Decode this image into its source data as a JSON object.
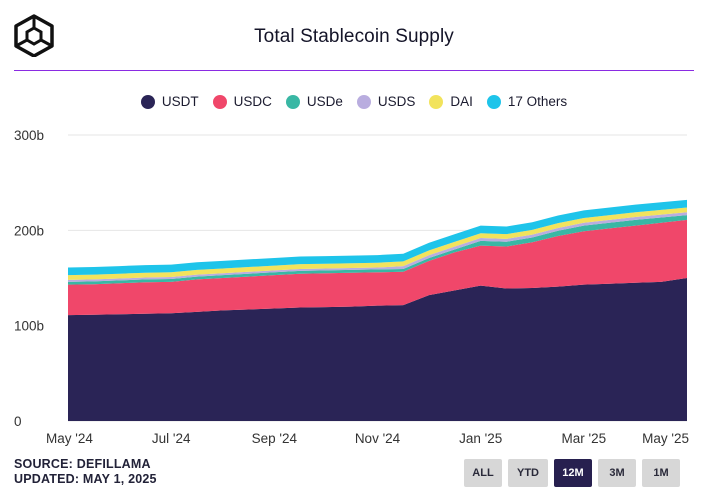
{
  "header": {
    "title": "Total Stablecoin Supply"
  },
  "footer": {
    "source": "SOURCE: DEFILLAMA",
    "updated": "UPDATED: MAY 1, 2025"
  },
  "range_buttons": [
    {
      "label": "ALL",
      "active": false
    },
    {
      "label": "YTD",
      "active": false
    },
    {
      "label": "12M",
      "active": true
    },
    {
      "label": "3M",
      "active": false
    },
    {
      "label": "1M",
      "active": false
    }
  ],
  "colors": {
    "USDT": "#2a2456",
    "USDC": "#f0476a",
    "USDe": "#39b7a4",
    "USDS": "#b9addf",
    "DAI": "#f2e35c",
    "17 Others": "#1ec4ea",
    "divider": "#8a2be2"
  },
  "chart_data": {
    "type": "area",
    "stacked": true,
    "title": "Total Stablecoin Supply",
    "xlabel": "",
    "ylabel": "",
    "ylim": [
      0,
      300
    ],
    "yticks": [
      0,
      100,
      200,
      300
    ],
    "ytick_labels": [
      "0",
      "100b",
      "200b",
      "300b"
    ],
    "xticks": [
      0,
      2,
      4,
      6,
      8,
      10,
      12
    ],
    "xtick_labels": [
      "May '24",
      "Jul '24",
      "Sep '24",
      "Nov '24",
      "Jan '25",
      "Mar '25",
      "May '25"
    ],
    "x": [
      0,
      0.5,
      1,
      1.5,
      2,
      2.5,
      3,
      3.5,
      4,
      4.5,
      5,
      5.5,
      6,
      6.5,
      7,
      7.5,
      8,
      8.5,
      9,
      9.5,
      10,
      10.5,
      11,
      11.5,
      12
    ],
    "legend_placement": "top-center",
    "series": [
      {
        "name": "USDT",
        "values": [
          111,
          111.5,
          112,
          112.5,
          113,
          114.5,
          116,
          117,
          118,
          119,
          119.5,
          120,
          121,
          121.5,
          132,
          137,
          142,
          139,
          139.5,
          141,
          143,
          144,
          145,
          146,
          150
        ]
      },
      {
        "name": "USDC",
        "values": [
          32,
          32,
          32.5,
          33,
          33,
          34,
          34,
          34.5,
          35,
          35.5,
          35.5,
          35.5,
          35,
          35,
          36,
          40,
          42,
          44,
          48,
          53,
          56,
          58,
          60,
          62,
          61
        ]
      },
      {
        "name": "USDe",
        "values": [
          3,
          3,
          3,
          3,
          3,
          3,
          3,
          3,
          3,
          3,
          3,
          3,
          3,
          3,
          3,
          3,
          5,
          5,
          5,
          5.5,
          6,
          6,
          6,
          5.5,
          5
        ]
      },
      {
        "name": "USDS",
        "values": [
          2,
          2,
          2,
          2,
          2,
          2,
          2,
          2,
          2,
          2,
          2,
          2,
          2,
          3,
          3,
          3,
          3,
          3,
          3,
          3,
          3,
          3,
          3,
          3,
          3
        ]
      },
      {
        "name": "DAI",
        "values": [
          5,
          5,
          5,
          5,
          5,
          5,
          5,
          5,
          5,
          5,
          5,
          5,
          5,
          5,
          5,
          5,
          5,
          5,
          5,
          5,
          5,
          5,
          5,
          5,
          5
        ]
      },
      {
        "name": "17 Others",
        "values": [
          8,
          8,
          8,
          8,
          8,
          8,
          8,
          8,
          8,
          8,
          8,
          8,
          8,
          8,
          8,
          8,
          8,
          8,
          8,
          8,
          8,
          8,
          8,
          8,
          8
        ]
      }
    ]
  }
}
